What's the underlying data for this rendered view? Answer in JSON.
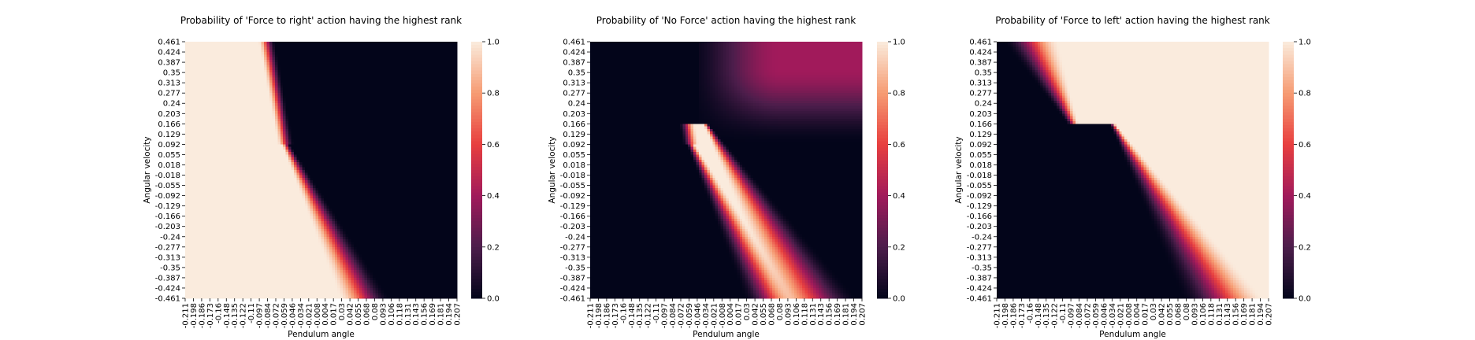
{
  "chart_data": [
    {
      "type": "heatmap",
      "title": "Probability of 'Force to right' action having the highest rank",
      "xlabel": "Pendulum angle",
      "ylabel": "Angular velocity",
      "pattern": "force-right",
      "xlim": [
        -0.211,
        0.207
      ],
      "ylim": [
        -0.461,
        0.461
      ],
      "colorbar": {
        "ticks": [
          "0.0",
          "0.2",
          "0.4",
          "0.6",
          "0.8",
          "1.0"
        ],
        "range": [
          0.0,
          1.0
        ]
      }
    },
    {
      "type": "heatmap",
      "title": "Probability of 'No Force' action having the highest rank",
      "xlabel": "Pendulum angle",
      "ylabel": "Angular velocity",
      "pattern": "no-force",
      "xlim": [
        -0.211,
        0.207
      ],
      "ylim": [
        -0.461,
        0.461
      ],
      "colorbar": {
        "ticks": [
          "0.0",
          "0.2",
          "0.4",
          "0.6",
          "0.8",
          "1.0"
        ],
        "range": [
          0.0,
          1.0
        ]
      }
    },
    {
      "type": "heatmap",
      "title": "Probability of 'Force to left' action having the highest rank",
      "xlabel": "Pendulum angle",
      "ylabel": "Angular velocity",
      "pattern": "force-left",
      "xlim": [
        -0.211,
        0.207
      ],
      "ylim": [
        -0.461,
        0.461
      ],
      "colorbar": {
        "ticks": [
          "0.0",
          "0.2",
          "0.4",
          "0.6",
          "0.8",
          "1.0"
        ],
        "range": [
          0.0,
          1.0
        ]
      }
    }
  ],
  "x_tick_labels": [
    "-0.211",
    "-0.198",
    "-0.186",
    "-0.173",
    "-0.16",
    "-0.148",
    "-0.135",
    "-0.122",
    "-0.11",
    "-0.097",
    "-0.084",
    "-0.072",
    "-0.059",
    "-0.046",
    "-0.034",
    "-0.021",
    "-0.008",
    "0.004",
    "0.017",
    "0.03",
    "0.042",
    "0.055",
    "0.068",
    "0.08",
    "0.093",
    "0.106",
    "0.118",
    "0.131",
    "0.143",
    "0.156",
    "0.169",
    "0.181",
    "0.194",
    "0.207"
  ],
  "y_tick_labels": [
    "0.461",
    "0.424",
    "0.387",
    "0.35",
    "0.313",
    "0.277",
    "0.24",
    "0.203",
    "0.166",
    "0.129",
    "0.092",
    "0.055",
    "0.018",
    "-0.018",
    "-0.055",
    "-0.092",
    "-0.129",
    "-0.166",
    "-0.203",
    "-0.24",
    "-0.277",
    "-0.313",
    "-0.35",
    "-0.387",
    "-0.424",
    "-0.461"
  ],
  "colormap": {
    "name": "rocket",
    "stops": [
      "#03051a",
      "#4c1d4b",
      "#a11a5b",
      "#e83f3f",
      "#f69c73",
      "#faebdd"
    ]
  }
}
